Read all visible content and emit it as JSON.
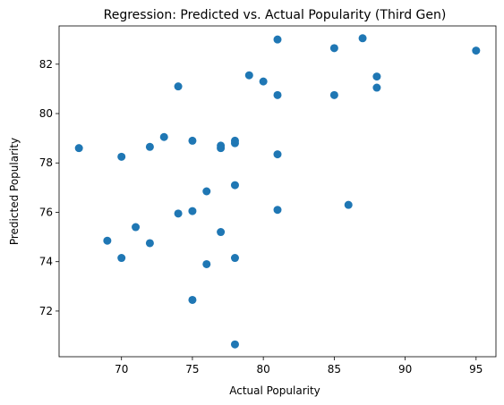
{
  "chart_data": {
    "type": "scatter",
    "title": "Regression: Predicted vs. Actual Popularity (Third Gen)",
    "xlabel": "Actual Popularity",
    "ylabel": "Predicted Popularity",
    "xlim": [
      65.6,
      96.4
    ],
    "ylim": [
      70.15,
      83.55
    ],
    "xticks": [
      70,
      75,
      80,
      85,
      90,
      95
    ],
    "yticks": [
      72,
      74,
      76,
      78,
      80,
      82
    ],
    "point_color": "#1f77b4",
    "grid": false,
    "legend": "none",
    "points": [
      {
        "x": 67,
        "y": 78.6
      },
      {
        "x": 69,
        "y": 74.85
      },
      {
        "x": 70,
        "y": 78.25
      },
      {
        "x": 70,
        "y": 74.15
      },
      {
        "x": 71,
        "y": 75.4
      },
      {
        "x": 72,
        "y": 78.65
      },
      {
        "x": 72,
        "y": 74.75
      },
      {
        "x": 73,
        "y": 79.05
      },
      {
        "x": 74,
        "y": 81.1
      },
      {
        "x": 74,
        "y": 75.95
      },
      {
        "x": 75,
        "y": 78.9
      },
      {
        "x": 75,
        "y": 76.05
      },
      {
        "x": 75,
        "y": 72.45
      },
      {
        "x": 76,
        "y": 76.85
      },
      {
        "x": 76,
        "y": 73.9
      },
      {
        "x": 77,
        "y": 78.7
      },
      {
        "x": 77,
        "y": 78.6
      },
      {
        "x": 77,
        "y": 75.2
      },
      {
        "x": 78,
        "y": 78.9
      },
      {
        "x": 78,
        "y": 78.8
      },
      {
        "x": 78,
        "y": 77.1
      },
      {
        "x": 78,
        "y": 74.15
      },
      {
        "x": 78,
        "y": 70.65
      },
      {
        "x": 79,
        "y": 81.55
      },
      {
        "x": 80,
        "y": 81.3
      },
      {
        "x": 81,
        "y": 83.0
      },
      {
        "x": 81,
        "y": 80.75
      },
      {
        "x": 81,
        "y": 78.35
      },
      {
        "x": 81,
        "y": 76.1
      },
      {
        "x": 85,
        "y": 82.65
      },
      {
        "x": 85,
        "y": 80.75
      },
      {
        "x": 86,
        "y": 76.3
      },
      {
        "x": 87,
        "y": 83.05
      },
      {
        "x": 88,
        "y": 81.5
      },
      {
        "x": 88,
        "y": 81.05
      },
      {
        "x": 95,
        "y": 82.55
      }
    ]
  }
}
